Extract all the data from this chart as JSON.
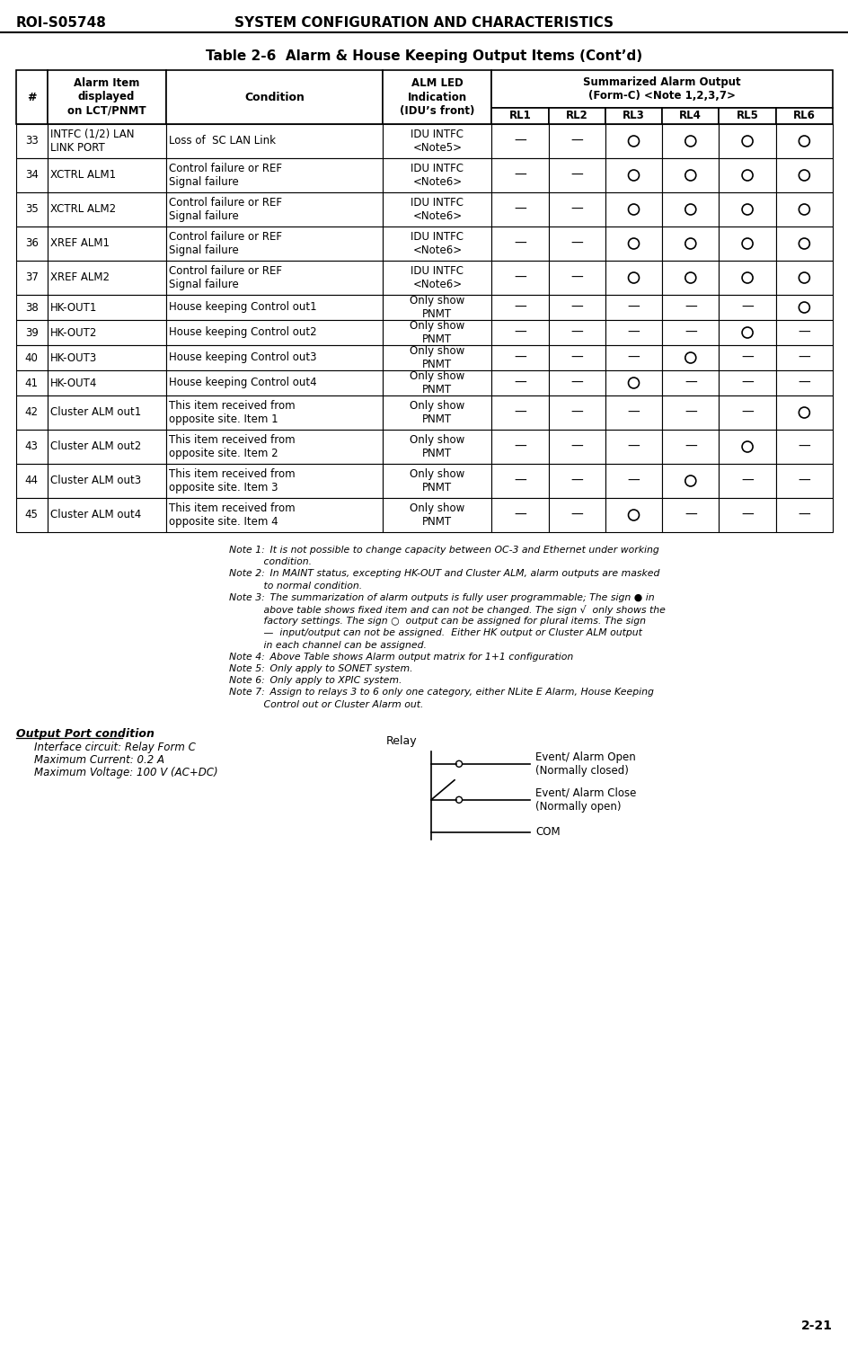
{
  "header_left": "ROI-S05748",
  "header_center": "SYSTEM CONFIGURATION AND CHARACTERISTICS",
  "page_num": "2-21",
  "table_title": "Table 2-6  Alarm & House Keeping Output Items (Cont’d)",
  "summarized_header": "Summarized Alarm Output\n(Form-C) <Note 1,2,3,7>",
  "rows": [
    {
      "num": "33",
      "item": "INTFC (1/2) LAN\nLINK PORT",
      "condition": "Loss of  SC LAN Link",
      "indication": "IDU INTFC\n<Note5>",
      "rl1": "—",
      "rl2": "—",
      "rl3": "O",
      "rl4": "O",
      "rl5": "O",
      "rl6": "O"
    },
    {
      "num": "34",
      "item": "XCTRL ALM1",
      "condition": "Control failure or REF\nSignal failure",
      "indication": "IDU INTFC\n<Note6>",
      "rl1": "—",
      "rl2": "—",
      "rl3": "O",
      "rl4": "O",
      "rl5": "O",
      "rl6": "O"
    },
    {
      "num": "35",
      "item": "XCTRL ALM2",
      "condition": "Control failure or REF\nSignal failure",
      "indication": "IDU INTFC\n<Note6>",
      "rl1": "—",
      "rl2": "—",
      "rl3": "O",
      "rl4": "O",
      "rl5": "O",
      "rl6": "O"
    },
    {
      "num": "36",
      "item": "XREF ALM1",
      "condition": "Control failure or REF\nSignal failure",
      "indication": "IDU INTFC\n<Note6>",
      "rl1": "—",
      "rl2": "—",
      "rl3": "O",
      "rl4": "O",
      "rl5": "O",
      "rl6": "O"
    },
    {
      "num": "37",
      "item": "XREF ALM2",
      "condition": "Control failure or REF\nSignal failure",
      "indication": "IDU INTFC\n<Note6>",
      "rl1": "—",
      "rl2": "—",
      "rl3": "O",
      "rl4": "O",
      "rl5": "O",
      "rl6": "O"
    },
    {
      "num": "38",
      "item": "HK-OUT1",
      "condition": "House keeping Control out1",
      "indication": "Only show\nPNMT",
      "rl1": "—",
      "rl2": "—",
      "rl3": "—",
      "rl4": "—",
      "rl5": "—",
      "rl6": "O"
    },
    {
      "num": "39",
      "item": "HK-OUT2",
      "condition": "House keeping Control out2",
      "indication": "Only show\nPNMT",
      "rl1": "—",
      "rl2": "—",
      "rl3": "—",
      "rl4": "—",
      "rl5": "O",
      "rl6": "—"
    },
    {
      "num": "40",
      "item": "HK-OUT3",
      "condition": "House keeping Control out3",
      "indication": "Only show\nPNMT",
      "rl1": "—",
      "rl2": "—",
      "rl3": "—",
      "rl4": "O",
      "rl5": "—",
      "rl6": "—"
    },
    {
      "num": "41",
      "item": "HK-OUT4",
      "condition": "House keeping Control out4",
      "indication": "Only show\nPNMT",
      "rl1": "—",
      "rl2": "—",
      "rl3": "O",
      "rl4": "—",
      "rl5": "—",
      "rl6": "—"
    },
    {
      "num": "42",
      "item": "Cluster ALM out1",
      "condition": "This item received from\nopposite site. Item 1",
      "indication": "Only show\nPNMT",
      "rl1": "—",
      "rl2": "—",
      "rl3": "—",
      "rl4": "—",
      "rl5": "—",
      "rl6": "O"
    },
    {
      "num": "43",
      "item": "Cluster ALM out2",
      "condition": "This item received from\nopposite site. Item 2",
      "indication": "Only show\nPNMT",
      "rl1": "—",
      "rl2": "—",
      "rl3": "—",
      "rl4": "—",
      "rl5": "O",
      "rl6": "—"
    },
    {
      "num": "44",
      "item": "Cluster ALM out3",
      "condition": "This item received from\nopposite site. Item 3",
      "indication": "Only show\nPNMT",
      "rl1": "—",
      "rl2": "—",
      "rl3": "—",
      "rl4": "O",
      "rl5": "—",
      "rl6": "—"
    },
    {
      "num": "45",
      "item": "Cluster ALM out4",
      "condition": "This item received from\nopposite site. Item 4",
      "indication": "Only show\nPNMT",
      "rl1": "—",
      "rl2": "—",
      "rl3": "O",
      "rl4": "—",
      "rl5": "—",
      "rl6": "—"
    }
  ],
  "note_lines": [
    [
      "Note 1:",
      " It is not possible to change capacity between OC-3 and Ethernet under working"
    ],
    [
      "",
      "           condition."
    ],
    [
      "Note 2:",
      " In MAINT status, excepting HK-OUT and Cluster ALM, alarm outputs are masked"
    ],
    [
      "",
      "           to normal condition."
    ],
    [
      "Note 3:",
      " The summarization of alarm outputs is fully user programmable; The sign ● in"
    ],
    [
      "",
      "           above table shows fixed item and can not be changed. The sign √  only shows the"
    ],
    [
      "",
      "           factory settings. The sign ○  output can be assigned for plural items. The sign"
    ],
    [
      "",
      "           —  input/output can not be assigned.  Either HK output or Cluster ALM output"
    ],
    [
      "",
      "           in each channel can be assigned."
    ],
    [
      "Note 4:",
      " Above Table shows Alarm output matrix for 1+1 configuration"
    ],
    [
      "Note 5:",
      " Only apply to SONET system."
    ],
    [
      "Note 6:",
      " Only apply to XPIC system."
    ],
    [
      "Note 7:",
      " Assign to relays 3 to 6 only one category, either NLite E Alarm, House Keeping"
    ],
    [
      "",
      "           Control out or Cluster Alarm out."
    ]
  ],
  "output_port_title": "Output Port condition",
  "output_port_lines": [
    "Interface circuit: Relay Form C",
    "Maximum Current: 0.2 A",
    "Maximum Voltage: 100 V (AC+DC)"
  ],
  "relay_label": "Relay",
  "relay_right_labels": [
    "Event/ Alarm Open\n(Normally closed)",
    "Event/ Alarm Close\n(Normally open)",
    "COM"
  ]
}
